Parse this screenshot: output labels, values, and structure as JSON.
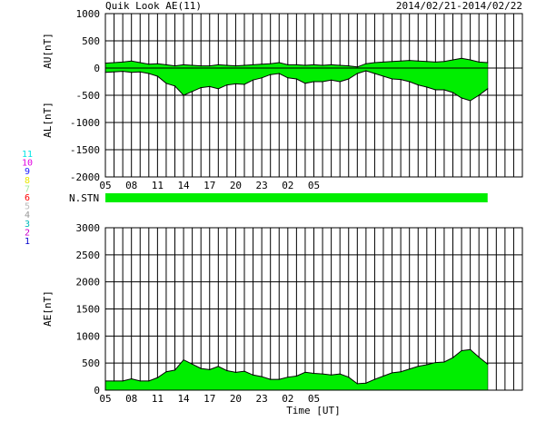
{
  "header": {
    "title": "Quik Look AE(11)",
    "date_range": "2014/02/21-2014/02/22"
  },
  "station_legend": [
    {
      "label": "11",
      "color": "#00e5e5"
    },
    {
      "label": "10",
      "color": "#e000e0"
    },
    {
      "label": "9",
      "color": "#2020ff"
    },
    {
      "label": "8",
      "color": "#e8e800"
    },
    {
      "label": "7",
      "color": "#a0e8a0"
    },
    {
      "label": "6",
      "color": "#ff0000"
    },
    {
      "label": "5",
      "color": "#bbbbbb"
    },
    {
      "label": "4",
      "color": "#999999"
    },
    {
      "label": "3",
      "color": "#00bbbb"
    },
    {
      "label": "2",
      "color": "#cc00cc"
    },
    {
      "label": "1",
      "color": "#0000cc"
    }
  ],
  "nstn_label": "N.STN",
  "fill_color": "#00ee00",
  "chart_data": [
    {
      "type": "area",
      "name": "AU/AL panel",
      "ylabel_upper": "AU[nT]",
      "ylabel_lower": "AL[nT]",
      "ylim": [
        -2000,
        1000
      ],
      "yticks": [
        1000,
        500,
        0,
        -500,
        -1000,
        -1500,
        -2000
      ],
      "xlim_hours": [
        0,
        48
      ],
      "xtick_labels": [
        "05",
        "08",
        "11",
        "14",
        "17",
        "20",
        "23",
        "02",
        "05"
      ],
      "x_hours": [
        0,
        1,
        2,
        3,
        4,
        5,
        6,
        7,
        8,
        9,
        10,
        11,
        12,
        13,
        14,
        15,
        16,
        17,
        18,
        19,
        20,
        21,
        22,
        23,
        24,
        25,
        26,
        27,
        28,
        29,
        30,
        31,
        32,
        33,
        34,
        35,
        36,
        37,
        38,
        39,
        40,
        41,
        42,
        43,
        44
      ],
      "series": [
        {
          "values": [
            90,
            100,
            110,
            130,
            100,
            70,
            80,
            60,
            40,
            60,
            50,
            40,
            40,
            60,
            50,
            40,
            50,
            60,
            70,
            80,
            100,
            60,
            60,
            50,
            60,
            50,
            60,
            50,
            40,
            20,
            80,
            100,
            110,
            120,
            130,
            140,
            130,
            120,
            110,
            120,
            150,
            180,
            150,
            110,
            100
          ]
        },
        {
          "values": [
            -80,
            -70,
            -60,
            -80,
            -70,
            -100,
            -150,
            -280,
            -330,
            -500,
            -430,
            -360,
            -340,
            -380,
            -310,
            -290,
            -300,
            -220,
            -180,
            -120,
            -100,
            -180,
            -200,
            -280,
            -250,
            -250,
            -220,
            -250,
            -200,
            -100,
            -50,
            -100,
            -150,
            -200,
            -210,
            -250,
            -310,
            -350,
            -400,
            -400,
            -450,
            -550,
            -600,
            -500,
            -380
          ]
        }
      ]
    },
    {
      "type": "bar",
      "name": "N.STN",
      "x_hours_range": [
        0,
        44
      ],
      "value": 11
    },
    {
      "type": "area",
      "name": "AE panel",
      "ylabel": "AE[nT]",
      "ylim": [
        0,
        3000
      ],
      "yticks": [
        3000,
        2500,
        2000,
        1500,
        1000,
        500,
        0
      ],
      "xlim_hours": [
        0,
        48
      ],
      "xtick_labels": [
        "05",
        "08",
        "11",
        "14",
        "17",
        "20",
        "23",
        "02",
        "05"
      ],
      "xlabel": "Time [UT]",
      "x_hours": [
        0,
        1,
        2,
        3,
        4,
        5,
        6,
        7,
        8,
        9,
        10,
        11,
        12,
        13,
        14,
        15,
        16,
        17,
        18,
        19,
        20,
        21,
        22,
        23,
        24,
        25,
        26,
        27,
        28,
        29,
        30,
        31,
        32,
        33,
        34,
        35,
        36,
        37,
        38,
        39,
        40,
        41,
        42,
        43,
        44
      ],
      "values": [
        170,
        170,
        170,
        210,
        170,
        170,
        230,
        340,
        370,
        560,
        480,
        400,
        380,
        440,
        360,
        330,
        350,
        280,
        250,
        200,
        200,
        240,
        260,
        330,
        310,
        300,
        280,
        300,
        240,
        120,
        130,
        200,
        260,
        320,
        340,
        390,
        440,
        470,
        510,
        520,
        600,
        730,
        750,
        610,
        480
      ]
    }
  ]
}
